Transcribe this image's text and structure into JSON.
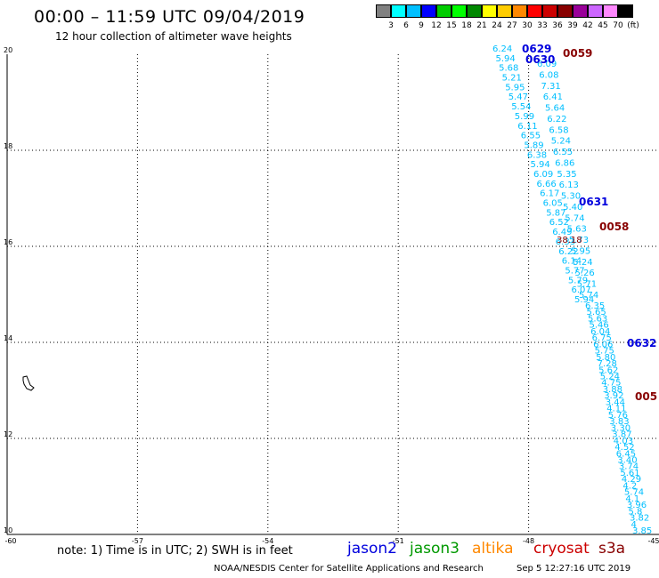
{
  "title": "00:00 – 11:59 UTC 09/04/2019",
  "subtitle": "12 hour collection of altimeter wave heights",
  "colorbar": {
    "colors": [
      "#808080",
      "#00ffff",
      "#00bfff",
      "#0000ff",
      "#00cc00",
      "#00ff00",
      "#008800",
      "#ffff00",
      "#ffcc00",
      "#ff8800",
      "#ff0000",
      "#cc0000",
      "#880000",
      "#990099",
      "#cc66ff",
      "#ff88ff",
      "#000000"
    ],
    "labels": [
      "3",
      "6",
      "9",
      "12",
      "15",
      "18",
      "21",
      "24",
      "27",
      "30",
      "33",
      "36",
      "39",
      "42",
      "45",
      "70",
      "(ft)"
    ]
  },
  "map": {
    "lon_range": [
      -60,
      -45
    ],
    "lat_range": [
      10,
      20
    ],
    "lon_ticks": [
      "-60",
      "-57",
      "-54",
      "-51",
      "-48",
      "-45"
    ],
    "lat_ticks": [
      "20",
      "18",
      "16",
      "14",
      "12",
      "10"
    ]
  },
  "track_labels": [
    {
      "text": "0629",
      "color": "#0000dd"
    },
    {
      "text": "0630",
      "color": "#0000dd"
    },
    {
      "text": "0059",
      "color": "#880000"
    },
    {
      "text": "0631",
      "color": "#0000dd"
    },
    {
      "text": "0058",
      "color": "#880000"
    },
    {
      "text": "0632",
      "color": "#0000dd"
    },
    {
      "text": "005",
      "color": "#880000"
    }
  ],
  "wave_heights": {
    "color_cyan": "#00bfff",
    "color_dark": "#880000",
    "track_A": [
      "6.24",
      "5.94",
      "5.68",
      "5.21",
      "5.95",
      "5.47",
      "5.54",
      "5.99",
      "6.11",
      "6.55",
      "5.89",
      "6.38",
      "5.94",
      "6.09",
      "6.66",
      "6.17",
      "6.05",
      "5.87",
      "6.52",
      "6.49",
      "6.33",
      "6.22",
      "6.14",
      "5.77",
      "5.79",
      "6.07",
      "5.94"
    ],
    "track_B": [
      "6.09",
      "6.08",
      "7.31",
      "6.41",
      "5.64",
      "6.22",
      "6.58",
      "5.24",
      "6.55",
      "6.86",
      "5.35",
      "6.13",
      "5.30",
      "5.40",
      "5.74",
      "5.63",
      "5.73",
      "5.95",
      "5.24",
      "5.26",
      "5.71",
      "5.74"
    ],
    "track_C": [
      "6.35",
      "5.65",
      "5.63",
      "5.46",
      "6.04",
      "6.75",
      "6.06",
      "5.75",
      "5.80",
      "7.28",
      "5.62",
      "5.24",
      "4.75",
      "3.88",
      "3.92",
      "3.44",
      "4.11",
      "5.76",
      "3.83",
      "3.30",
      "3.87",
      "4.03",
      "4.52",
      "6.45",
      "3.40",
      "3.74",
      "5.61",
      "4.29",
      "4.2",
      "5.74",
      "4.1",
      "3.96",
      "5.8",
      "3.82",
      "4",
      "3.85"
    ],
    "high_value": "38.18"
  },
  "note": "note: 1) Time is in UTC; 2) SWH is in feet",
  "legend": [
    {
      "label": "jason2",
      "color": "#0000dd"
    },
    {
      "label": "jason3",
      "color": "#009900"
    },
    {
      "label": "altika",
      "color": "#ff8800"
    },
    {
      "label": "cryosat",
      "color": "#cc0000"
    },
    {
      "label": "s3a",
      "color": "#880000"
    }
  ],
  "credit": "NOAA/NESDIS Center for Satellite Applications and Research",
  "datestamp": "Sep  5 12:27:16 UTC 2019"
}
